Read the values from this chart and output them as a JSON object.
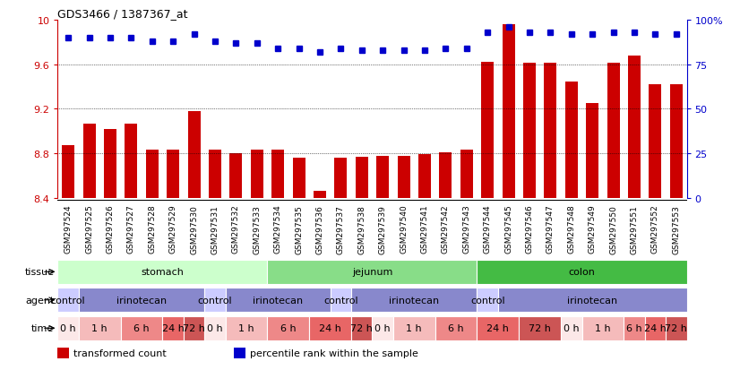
{
  "title": "GDS3466 / 1387367_at",
  "samples": [
    "GSM297524",
    "GSM297525",
    "GSM297526",
    "GSM297527",
    "GSM297528",
    "GSM297529",
    "GSM297530",
    "GSM297531",
    "GSM297532",
    "GSM297533",
    "GSM297534",
    "GSM297535",
    "GSM297536",
    "GSM297537",
    "GSM297538",
    "GSM297539",
    "GSM297540",
    "GSM297541",
    "GSM297542",
    "GSM297543",
    "GSM297544",
    "GSM297545",
    "GSM297546",
    "GSM297547",
    "GSM297548",
    "GSM297549",
    "GSM297550",
    "GSM297551",
    "GSM297552",
    "GSM297553"
  ],
  "bar_values": [
    8.87,
    9.07,
    9.02,
    9.07,
    8.83,
    8.83,
    9.18,
    8.83,
    8.8,
    8.83,
    8.83,
    8.76,
    8.46,
    8.76,
    8.77,
    8.78,
    8.78,
    8.79,
    8.81,
    8.83,
    9.62,
    9.96,
    9.61,
    9.61,
    9.44,
    9.25,
    9.61,
    9.68,
    9.42,
    9.42
  ],
  "percentile_values": [
    90,
    90,
    90,
    90,
    88,
    88,
    92,
    88,
    87,
    87,
    84,
    84,
    82,
    84,
    83,
    83,
    83,
    83,
    84,
    84,
    93,
    96,
    93,
    93,
    92,
    92,
    93,
    93,
    92,
    92
  ],
  "ylim": [
    8.4,
    10.0
  ],
  "yticks": [
    8.4,
    8.8,
    9.2,
    9.6,
    10.0
  ],
  "ytick_labels": [
    "8.4",
    "8.8",
    "9.2",
    "9.6",
    "10"
  ],
  "right_yticks": [
    0,
    25,
    50,
    75,
    100
  ],
  "right_ytick_labels": [
    "0",
    "25",
    "50",
    "75",
    "100%"
  ],
  "bar_color": "#cc0000",
  "dot_color": "#0000cc",
  "background_color": "#ffffff",
  "tissue_rows": [
    {
      "label": "stomach",
      "start": 0,
      "end": 10,
      "color": "#ccffcc"
    },
    {
      "label": "jejunum",
      "start": 10,
      "end": 20,
      "color": "#88dd88"
    },
    {
      "label": "colon",
      "start": 20,
      "end": 30,
      "color": "#44bb44"
    }
  ],
  "agent_rows": [
    {
      "label": "control",
      "start": 0,
      "end": 1,
      "color": "#ccccff"
    },
    {
      "label": "irinotecan",
      "start": 1,
      "end": 7,
      "color": "#8888cc"
    },
    {
      "label": "control",
      "start": 7,
      "end": 8,
      "color": "#ccccff"
    },
    {
      "label": "irinotecan",
      "start": 8,
      "end": 13,
      "color": "#8888cc"
    },
    {
      "label": "control",
      "start": 13,
      "end": 14,
      "color": "#ccccff"
    },
    {
      "label": "irinotecan",
      "start": 14,
      "end": 20,
      "color": "#8888cc"
    },
    {
      "label": "control",
      "start": 20,
      "end": 21,
      "color": "#ccccff"
    },
    {
      "label": "irinotecan",
      "start": 21,
      "end": 30,
      "color": "#8888cc"
    }
  ],
  "time_rows": [
    {
      "label": "0 h",
      "start": 0,
      "end": 1,
      "color": "#fce8e8"
    },
    {
      "label": "1 h",
      "start": 1,
      "end": 3,
      "color": "#f5bbbb"
    },
    {
      "label": "6 h",
      "start": 3,
      "end": 5,
      "color": "#ee8888"
    },
    {
      "label": "24 h",
      "start": 5,
      "end": 6,
      "color": "#e86666"
    },
    {
      "label": "72 h",
      "start": 6,
      "end": 7,
      "color": "#cc5555"
    },
    {
      "label": "0 h",
      "start": 7,
      "end": 8,
      "color": "#fce8e8"
    },
    {
      "label": "1 h",
      "start": 8,
      "end": 10,
      "color": "#f5bbbb"
    },
    {
      "label": "6 h",
      "start": 10,
      "end": 12,
      "color": "#ee8888"
    },
    {
      "label": "24 h",
      "start": 12,
      "end": 14,
      "color": "#e86666"
    },
    {
      "label": "72 h",
      "start": 14,
      "end": 15,
      "color": "#cc5555"
    },
    {
      "label": "0 h",
      "start": 15,
      "end": 16,
      "color": "#fce8e8"
    },
    {
      "label": "1 h",
      "start": 16,
      "end": 18,
      "color": "#f5bbbb"
    },
    {
      "label": "6 h",
      "start": 18,
      "end": 20,
      "color": "#ee8888"
    },
    {
      "label": "24 h",
      "start": 20,
      "end": 22,
      "color": "#e86666"
    },
    {
      "label": "72 h",
      "start": 22,
      "end": 24,
      "color": "#cc5555"
    },
    {
      "label": "0 h",
      "start": 24,
      "end": 25,
      "color": "#fce8e8"
    },
    {
      "label": "1 h",
      "start": 25,
      "end": 27,
      "color": "#f5bbbb"
    },
    {
      "label": "6 h",
      "start": 27,
      "end": 28,
      "color": "#ee8888"
    },
    {
      "label": "24 h",
      "start": 28,
      "end": 29,
      "color": "#e86666"
    },
    {
      "label": "72 h",
      "start": 29,
      "end": 30,
      "color": "#cc5555"
    }
  ],
  "row_labels": [
    "tissue",
    "agent",
    "time"
  ],
  "legend_items": [
    {
      "color": "#cc0000",
      "label": "transformed count"
    },
    {
      "color": "#0000cc",
      "label": "percentile rank within the sample"
    }
  ]
}
